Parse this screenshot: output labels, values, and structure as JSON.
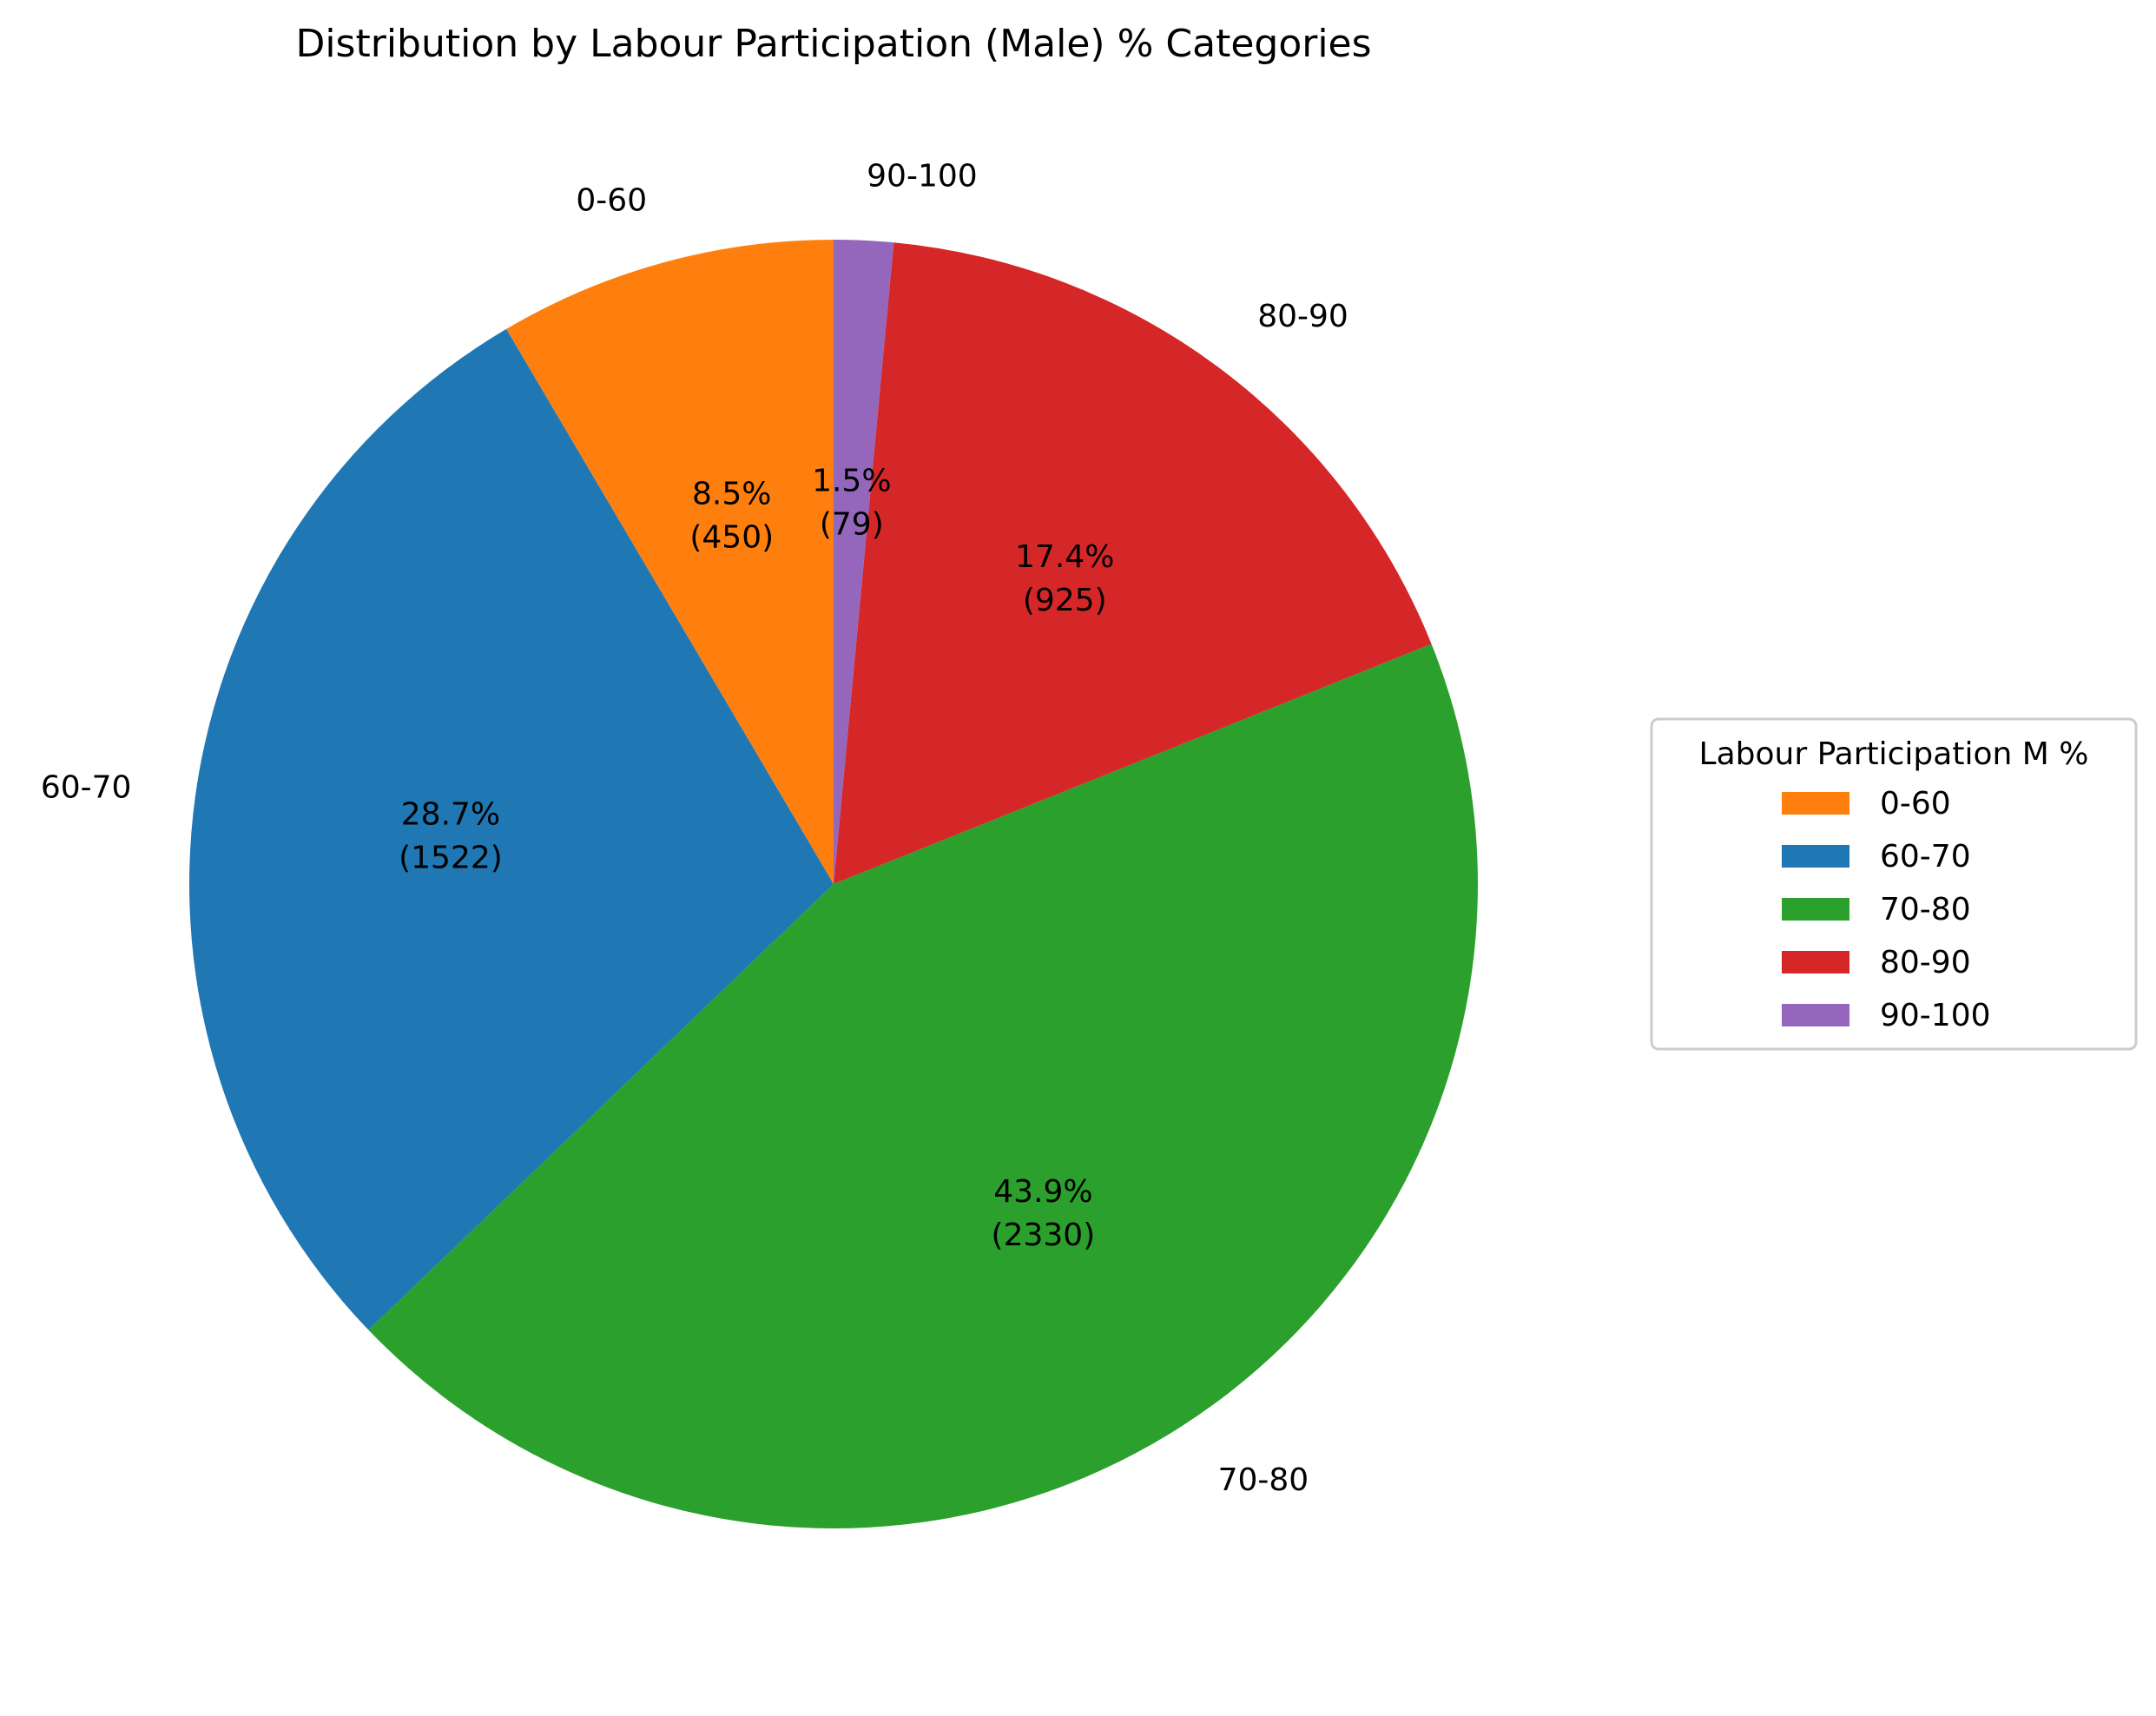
{
  "chart_data": {
    "type": "pie",
    "title": "Distribution by Labour Participation (Male) % Categories",
    "legend": {
      "title": "Labour Participation M %",
      "placement": "right"
    },
    "slices": [
      {
        "label": "0-60",
        "value": 450,
        "percent_label": "8.5%",
        "count_label": "(450)",
        "color": "#ff7f0e"
      },
      {
        "label": "60-70",
        "value": 1522,
        "percent_label": "28.7%",
        "count_label": "(1522)",
        "color": "#1f77b4"
      },
      {
        "label": "70-80",
        "value": 2330,
        "percent_label": "43.9%",
        "count_label": "(2330)",
        "color": "#2ca02c"
      },
      {
        "label": "80-90",
        "value": 925,
        "percent_label": "17.4%",
        "count_label": "(925)",
        "color": "#d62728"
      },
      {
        "label": "90-100",
        "value": 79,
        "percent_label": "1.5%",
        "count_label": "(79)",
        "color": "#9467bd"
      }
    ],
    "start_angle_deg": 90,
    "direction": "counterclockwise"
  }
}
